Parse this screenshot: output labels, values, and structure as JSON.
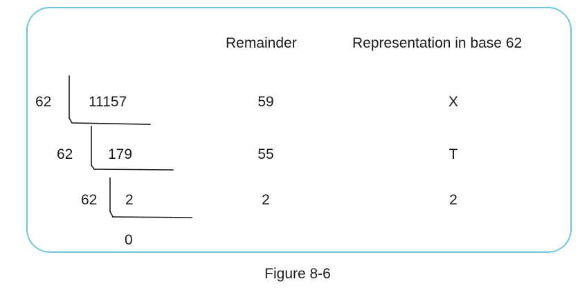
{
  "headers": {
    "remainder": "Remainder",
    "representation": "Representation in base 62"
  },
  "division": {
    "rows": [
      {
        "divisor": "62",
        "dividend": "11157",
        "remainder": "59",
        "representation": "X"
      },
      {
        "divisor": "62",
        "dividend": "179",
        "remainder": "55",
        "representation": "T"
      },
      {
        "divisor": "62",
        "dividend": "2",
        "remainder": "2",
        "representation": "2"
      }
    ],
    "final_quotient": "0"
  },
  "caption": "Figure 8-6",
  "colors": {
    "frame_border": "#6ec6dc",
    "text": "#1a1a1a"
  }
}
